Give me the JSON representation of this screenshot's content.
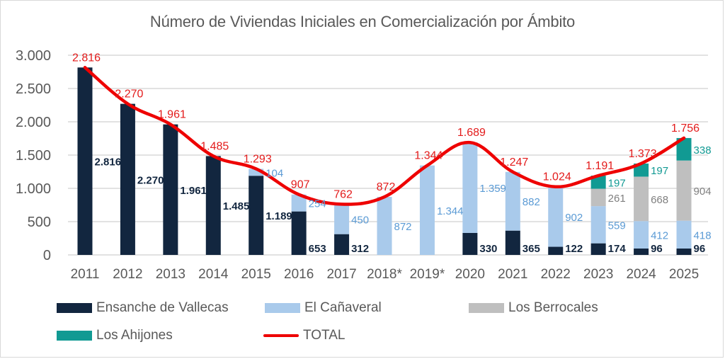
{
  "chart_data": {
    "type": "bar",
    "stacked": true,
    "title": "Número de Viviendas Iniciales en Comercialización por Ámbito",
    "xlabel": "",
    "ylabel": "",
    "ylim": [
      0,
      3000
    ],
    "yticks": [
      0,
      500,
      1000,
      1500,
      2000,
      2500,
      3000
    ],
    "ytick_labels": [
      "0",
      "500",
      "1.000",
      "1.500",
      "2.000",
      "2.500",
      "3.000"
    ],
    "grid": true,
    "legend_position": "bottom",
    "categories": [
      "2011",
      "2012",
      "2013",
      "2014",
      "2015",
      "2016",
      "2017",
      "2018*",
      "2019*",
      "2020",
      "2021",
      "2022",
      "2023",
      "2024",
      "2025"
    ],
    "series": [
      {
        "name": "Ensanche de Vallecas",
        "color": "#12263f",
        "label_color": "#12263f",
        "values": [
          2816,
          2270,
          1961,
          1485,
          1189,
          653,
          312,
          0,
          0,
          330,
          365,
          122,
          174,
          96,
          96
        ],
        "labels": [
          "2.816",
          "2.270",
          "1.961",
          "1.485",
          "1.189",
          "653",
          "312",
          "",
          "",
          "330",
          "365",
          "122",
          "174",
          "96",
          "96"
        ]
      },
      {
        "name": "El Cañaveral",
        "color": "#a9caeb",
        "label_color": "#5b9bd5",
        "values": [
          0,
          0,
          0,
          0,
          104,
          254,
          450,
          872,
          1344,
          1359,
          882,
          902,
          559,
          412,
          418
        ],
        "labels": [
          "",
          "",
          "",
          "",
          "104",
          "254",
          "450",
          "872",
          "1.344",
          "1.359",
          "882",
          "902",
          "559",
          "412",
          "418"
        ]
      },
      {
        "name": "Los Berrocales",
        "color": "#bfbfbf",
        "label_color": "#7f7f7f",
        "values": [
          0,
          0,
          0,
          0,
          0,
          0,
          0,
          0,
          0,
          0,
          0,
          0,
          261,
          668,
          904
        ],
        "labels": [
          "",
          "",
          "",
          "",
          "",
          "",
          "",
          "",
          "",
          "",
          "",
          "",
          "261",
          "668",
          "904"
        ]
      },
      {
        "name": "Los Ahijones",
        "color": "#119a93",
        "label_color": "#119a93",
        "values": [
          0,
          0,
          0,
          0,
          0,
          0,
          0,
          0,
          0,
          0,
          0,
          0,
          197,
          197,
          338
        ],
        "labels": [
          "",
          "",
          "",
          "",
          "",
          "",
          "",
          "",
          "",
          "",
          "",
          "",
          "197",
          "197",
          "338"
        ]
      }
    ],
    "line": {
      "name": "TOTAL",
      "color": "#ee0000",
      "values": [
        2816,
        2270,
        1961,
        1485,
        1293,
        907,
        762,
        872,
        1344,
        1689,
        1247,
        1024,
        1191,
        1373,
        1756
      ],
      "labels": [
        "2.816",
        "2.270",
        "1.961",
        "1.485",
        "1.293",
        "907",
        "762",
        "872",
        "1.344",
        "1.689",
        "1.247",
        "1.024",
        "1.191",
        "1.373",
        "1.756"
      ]
    }
  },
  "legend": {
    "items": [
      {
        "label": "Ensanche de Vallecas",
        "color": "#12263f",
        "kind": "box"
      },
      {
        "label": "El Cañaveral",
        "color": "#a9caeb",
        "kind": "box"
      },
      {
        "label": "Los Berrocales",
        "color": "#bfbfbf",
        "kind": "box"
      },
      {
        "label": "Los Ahijones",
        "color": "#119a93",
        "kind": "box"
      },
      {
        "label": "TOTAL",
        "color": "#ee0000",
        "kind": "line"
      }
    ]
  }
}
